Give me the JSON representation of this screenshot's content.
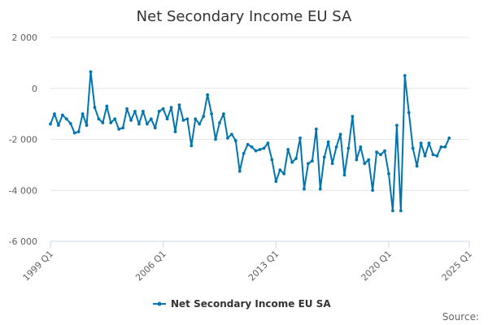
{
  "chart_data": {
    "type": "line",
    "title": "Net Secondary Income EU SA",
    "xlabel": "",
    "ylabel": "",
    "x_tick_labels": [
      "1999 Q1",
      "2006 Q1",
      "2013 Q1",
      "2020 Q1",
      "2025 Q1"
    ],
    "y_tick_labels": [
      "2 000",
      "0",
      "-2 000",
      "-4 000",
      "-6 000"
    ],
    "y_ticks": [
      2000,
      0,
      -2000,
      -4000,
      -6000
    ],
    "ylim": [
      -6000,
      2000
    ],
    "x_start": "1999 Q1",
    "x_end": "2025 Q1",
    "grid": "horizontal",
    "legend_position": "bottom-center",
    "credit": "Source:",
    "series": [
      {
        "name": "Net Secondary Income EU SA",
        "color": "#0075b0",
        "values": [
          -1400,
          -1000,
          -1450,
          -1050,
          -1200,
          -1380,
          -1750,
          -1700,
          -1000,
          -1450,
          650,
          -750,
          -1200,
          -1350,
          -700,
          -1350,
          -1200,
          -1600,
          -1550,
          -800,
          -1250,
          -900,
          -1400,
          -900,
          -1400,
          -1200,
          -1550,
          -900,
          -800,
          -1200,
          -750,
          -1700,
          -650,
          -1250,
          -1200,
          -2250,
          -1200,
          -1400,
          -1100,
          -250,
          -1000,
          -2000,
          -1350,
          -1000,
          -1950,
          -1800,
          -2050,
          -3250,
          -2550,
          -2200,
          -2300,
          -2450,
          -2400,
          -2350,
          -2150,
          -2800,
          -3650,
          -3200,
          -3350,
          -2400,
          -2900,
          -2750,
          -1950,
          -3950,
          -2950,
          -2850,
          -1600,
          -3950,
          -2700,
          -2100,
          -2950,
          -2300,
          -1800,
          -3400,
          -2350,
          -1100,
          -2800,
          -2300,
          -2950,
          -2800,
          -4000,
          -2500,
          -2600,
          -2450,
          -3350,
          -4800,
          -1450,
          -4800,
          500,
          -950,
          -2350,
          -3050,
          -2150,
          -2650,
          -2150,
          -2600,
          -2650,
          -2300,
          -2300,
          -1950
        ]
      }
    ]
  }
}
